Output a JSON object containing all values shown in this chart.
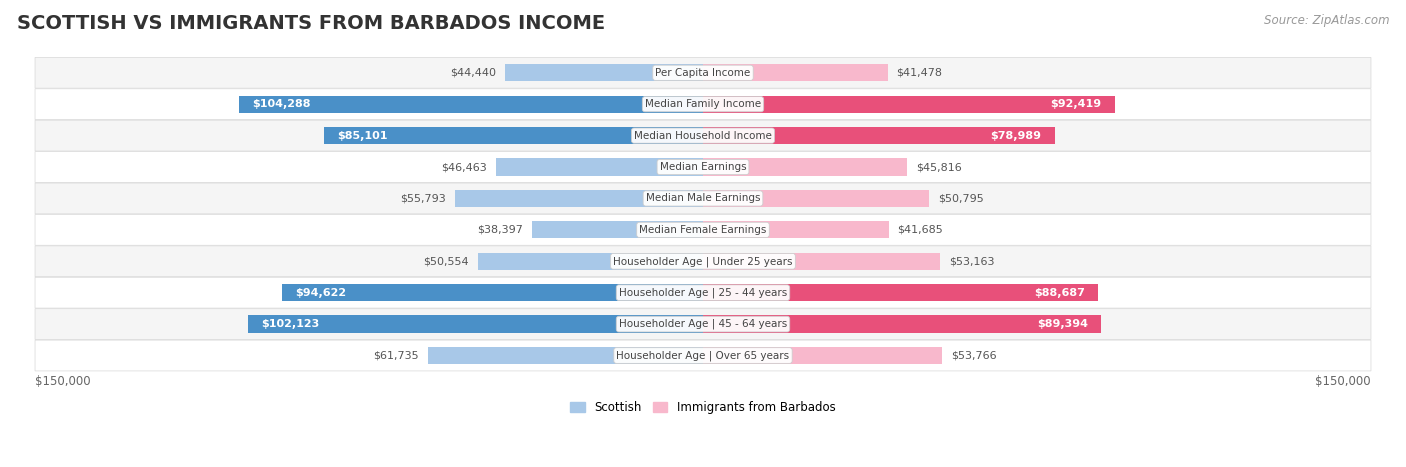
{
  "title": "SCOTTISH VS IMMIGRANTS FROM BARBADOS INCOME",
  "source": "Source: ZipAtlas.com",
  "categories": [
    "Per Capita Income",
    "Median Family Income",
    "Median Household Income",
    "Median Earnings",
    "Median Male Earnings",
    "Median Female Earnings",
    "Householder Age | Under 25 years",
    "Householder Age | 25 - 44 years",
    "Householder Age | 45 - 64 years",
    "Householder Age | Over 65 years"
  ],
  "scottish_values": [
    44440,
    104288,
    85101,
    46463,
    55793,
    38397,
    50554,
    94622,
    102123,
    61735
  ],
  "barbados_values": [
    41478,
    92419,
    78989,
    45816,
    50795,
    41685,
    53163,
    88687,
    89394,
    53766
  ],
  "scottish_color_light": "#a8c8e8",
  "scottish_color_dark": "#4a90c8",
  "barbados_color_light": "#f8b8cc",
  "barbados_color_dark": "#e8507a",
  "highlight_threshold": 70000,
  "max_value": 150000,
  "row_colors": [
    "#f5f5f5",
    "#ffffff"
  ],
  "row_border_color": "#d8d8d8",
  "label_dark": "#555555",
  "label_white": "#ffffff",
  "title_fontsize": 14,
  "source_fontsize": 8.5,
  "bar_label_fontsize": 8,
  "category_fontsize": 7.5,
  "axis_label_fontsize": 8.5,
  "legend_fontsize": 8.5
}
